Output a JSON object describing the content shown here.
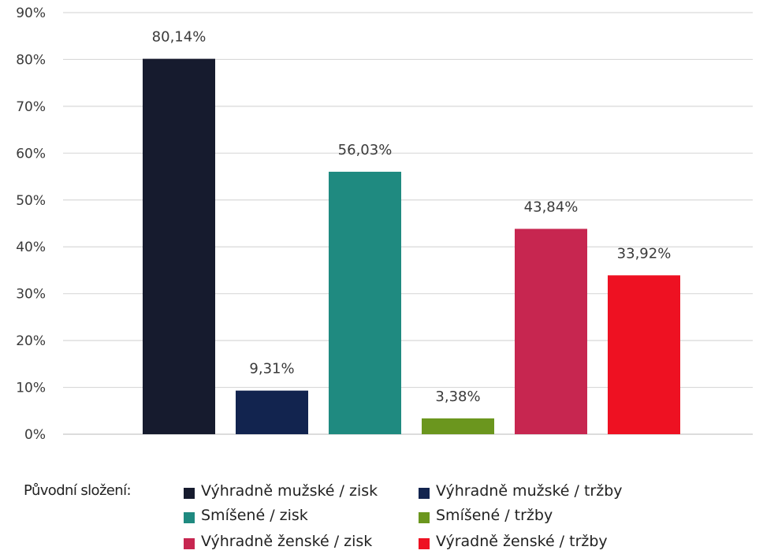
{
  "chart_data": {
    "type": "bar",
    "title": "",
    "xlabel": "",
    "ylabel": "",
    "ylim": [
      0,
      90
    ],
    "yticks": [
      "0%",
      "10%",
      "20%",
      "30%",
      "40%",
      "50%",
      "60%",
      "70%",
      "80%",
      "90%"
    ],
    "grid": true,
    "legend_position": "bottom",
    "legend_title": "Původní složení:",
    "categories": [
      "Výhradně mužské / zisk",
      "Výhradně mužské / tržby",
      "Smíšené / zisk",
      "Smíšené / tržby",
      "Výhradně ženské / zisk",
      "Výradně ženské / tržby"
    ],
    "values": [
      80.14,
      9.31,
      56.03,
      3.38,
      43.84,
      33.92
    ],
    "data_labels": [
      "80,14%",
      "9,31%",
      "56,03%",
      "3,38%",
      "43,84%",
      "33,92%"
    ],
    "colors": [
      "#161b2e",
      "#12244f",
      "#1f8a80",
      "#6b961e",
      "#c72650",
      "#ee1122"
    ]
  }
}
